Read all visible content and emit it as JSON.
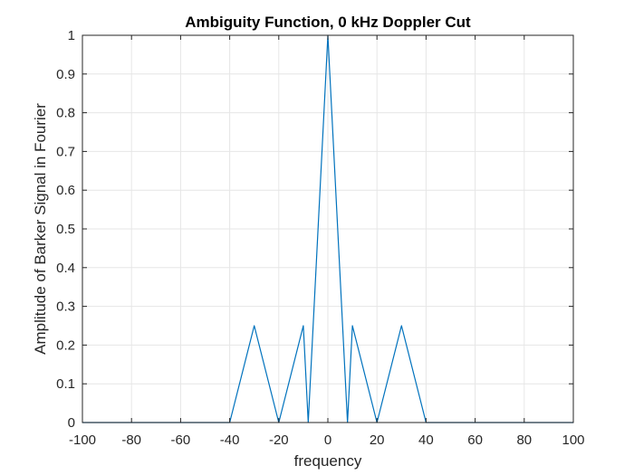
{
  "chart_data": {
    "type": "line",
    "title": "Ambiguity Function, 0 kHz Doppler Cut",
    "xlabel": "frequency",
    "ylabel": "Amplitude of Barker Signal in Fourier",
    "xlim": [
      -100,
      100
    ],
    "ylim": [
      0,
      1
    ],
    "xticks": [
      "-100",
      "-80",
      "-60",
      "-40",
      "-20",
      "0",
      "20",
      "40",
      "60",
      "80",
      "100"
    ],
    "yticks": [
      "0",
      "0.1",
      "0.2",
      "0.3",
      "0.4",
      "0.5",
      "0.6",
      "0.7",
      "0.8",
      "0.9",
      "1"
    ],
    "xtick_values": [
      -100,
      -80,
      -60,
      -40,
      -20,
      0,
      20,
      40,
      60,
      80,
      100
    ],
    "ytick_values": [
      0,
      0.1,
      0.2,
      0.3,
      0.4,
      0.5,
      0.6,
      0.7,
      0.8,
      0.9,
      1
    ],
    "grid": true,
    "line_color": "#0072BD",
    "series": [
      {
        "x": [
          -100,
          -40,
          -30,
          -20,
          -10,
          -8,
          0,
          8,
          10,
          20,
          30,
          40,
          100
        ],
        "y": [
          0,
          0,
          0.25,
          0,
          0.25,
          0,
          1,
          0,
          0.25,
          0,
          0.25,
          0,
          0
        ]
      }
    ]
  }
}
